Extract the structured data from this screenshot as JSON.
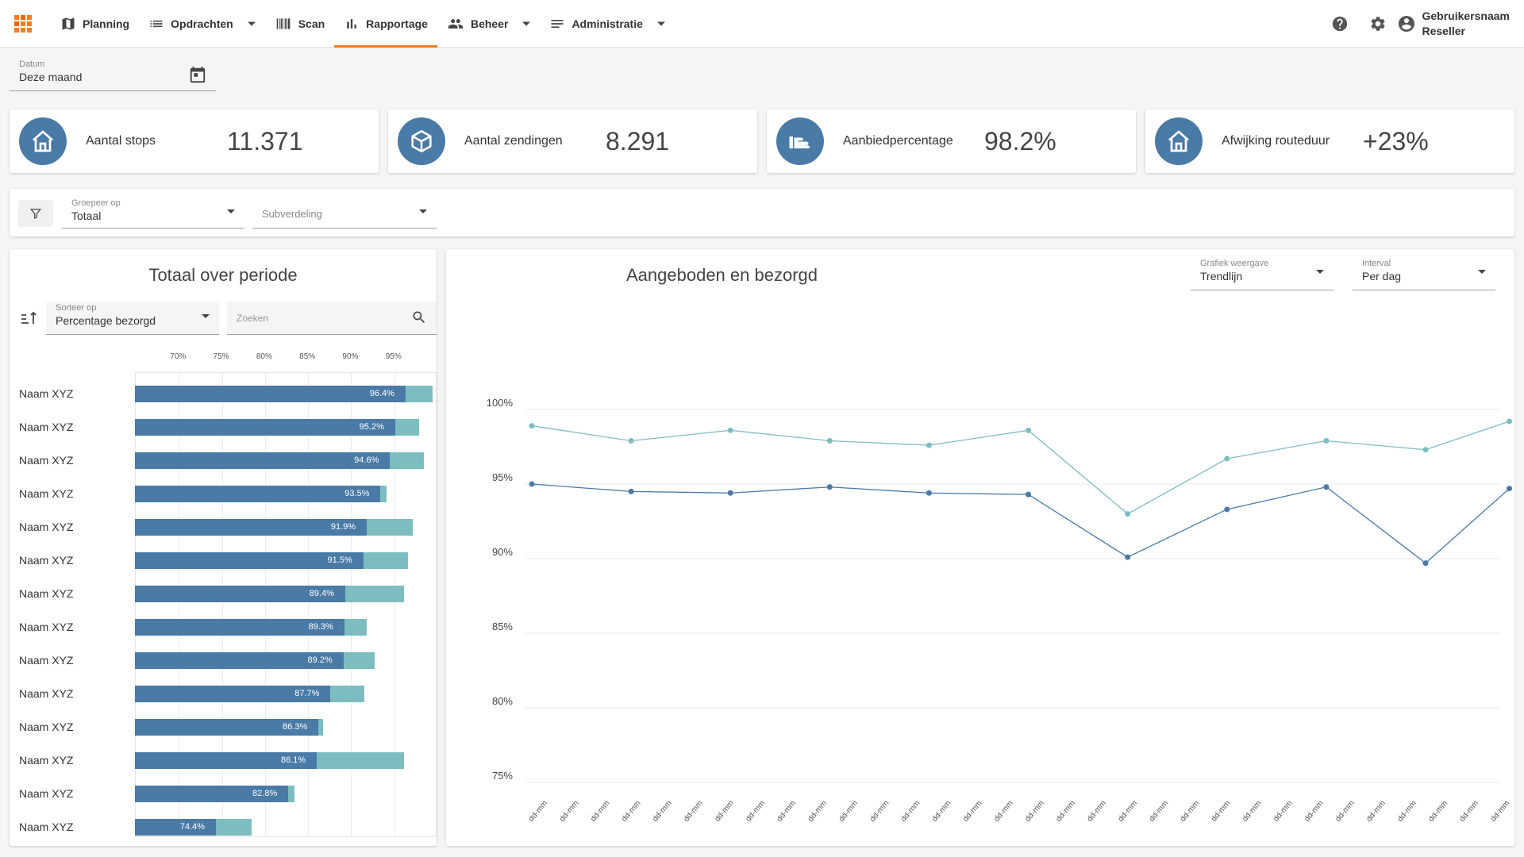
{
  "nav": {
    "planning": "Planning",
    "opdrachten": "Opdrachten",
    "scan": "Scan",
    "rapportage": "Rapportage",
    "beheer": "Beheer",
    "administratie": "Administratie"
  },
  "user": {
    "name": "Gebruikersnaam",
    "role": "Reseller"
  },
  "date_filter": {
    "label": "Datum",
    "value": "Deze maand"
  },
  "kpis": [
    {
      "label": "Aantal stops",
      "value": "11.371",
      "icon": "home-icon"
    },
    {
      "label": "Aantal zendingen",
      "value": "8.291",
      "icon": "package-icon"
    },
    {
      "label": "Aanbiedpercentage",
      "value": "98.2%",
      "icon": "hand-icon"
    },
    {
      "label": "Afwijking routeduur",
      "value": "+23%",
      "icon": "home-icon"
    }
  ],
  "filters": {
    "group_label": "Groepeer op",
    "group_value": "Totaal",
    "sub_placeholder": "Subverdeling"
  },
  "left_panel": {
    "title": "Totaal over periode",
    "sort_label": "Sorteer op",
    "sort_value": "Percentage bezorgd",
    "search_placeholder": "Zoeken"
  },
  "right_panel": {
    "title": "Aangeboden en bezorgd",
    "view_label": "Grafiek weergave",
    "view_value": "Trendlijn",
    "interval_label": "Interval",
    "interval_value": "Per dag"
  },
  "colors": {
    "accent": "#f47c20",
    "primary": "#4a7aa6",
    "secondary": "#7dbdbf"
  },
  "chart_data": [
    {
      "type": "bar",
      "orientation": "horizontal",
      "x_ticks": [
        "70%",
        "75%",
        "80%",
        "85%",
        "90%",
        "95%"
      ],
      "xlim": [
        65,
        100
      ],
      "categories": [
        "Naam XYZ",
        "Naam XYZ",
        "Naam XYZ",
        "Naam XYZ",
        "Naam XYZ",
        "Naam XYZ",
        "Naam XYZ",
        "Naam XYZ",
        "Naam XYZ",
        "Naam XYZ",
        "Naam XYZ",
        "Naam XYZ",
        "Naam XYZ",
        "Naam XYZ"
      ],
      "series": [
        {
          "values": [
            99.5,
            98.0,
            98.5,
            94.2,
            97.2,
            96.7,
            96.2,
            91.9,
            92.8,
            91.6,
            86.8,
            96.2,
            83.5,
            78.5
          ]
        },
        {
          "values": [
            96.4,
            95.2,
            94.6,
            93.5,
            91.9,
            91.5,
            89.4,
            89.3,
            89.2,
            87.7,
            86.3,
            86.1,
            82.8,
            74.4
          ]
        }
      ],
      "value_labels": [
        "96.4%",
        "95.2%",
        "94.6%",
        "93.5%",
        "91.9%",
        "91.5%",
        "89.4%",
        "89.3%",
        "89.2%",
        "87.7%",
        "86.3%",
        "86.1%",
        "82.8%",
        "74.4%"
      ]
    },
    {
      "type": "line",
      "y_ticks": [
        "100%",
        "95%",
        "90%",
        "85%",
        "80%",
        "75%"
      ],
      "ylim": [
        75,
        100
      ],
      "x_labels": [
        "dd-mm",
        "dd-mm",
        "dd-mm",
        "dd-mm",
        "dd-mm",
        "dd-mm",
        "dd-mm",
        "dd-mm",
        "dd-mm",
        "dd-mm",
        "dd-mm",
        "dd-mm",
        "dd-mm",
        "dd-mm",
        "dd-mm",
        "dd-mm",
        "dd-mm",
        "dd-mm",
        "dd-mm",
        "dd-mm",
        "dd-mm",
        "dd-mm",
        "dd-mm",
        "dd-mm",
        "dd-mm",
        "dd-mm",
        "dd-mm",
        "dd-mm",
        "dd-mm",
        "dd-mm",
        "dd-mm",
        "dd-mm"
      ],
      "series": [
        {
          "color": "#7dbdbf",
          "x_index": [
            0,
            3.2,
            6.4,
            9.6,
            12.8,
            16,
            19.2,
            22.4,
            25.6,
            28.8,
            31.5
          ],
          "values": [
            98.9,
            97.9,
            98.6,
            97.9,
            97.6,
            98.6,
            93.0,
            96.7,
            97.9,
            97.3,
            99.2
          ]
        },
        {
          "color": "#4a7aa6",
          "x_index": [
            0,
            3.2,
            6.4,
            9.6,
            12.8,
            16,
            19.2,
            22.4,
            25.6,
            28.8,
            31.5
          ],
          "values": [
            95.0,
            94.5,
            94.4,
            94.8,
            94.4,
            94.3,
            90.1,
            93.3,
            94.8,
            89.7,
            94.7
          ]
        }
      ]
    }
  ]
}
